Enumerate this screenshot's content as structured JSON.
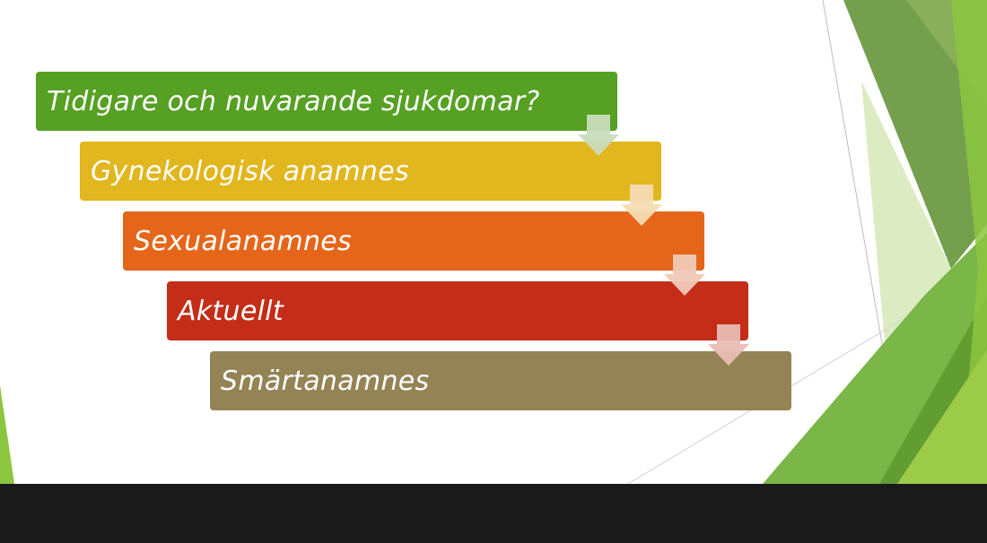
{
  "steps": [
    {
      "label": "Tidigare och nuvarande sjukdomar?",
      "color": "#56a024",
      "arrow_color": "#c9dcbd"
    },
    {
      "label": "Gynekologisk anamnes",
      "color": "#e2b61e",
      "arrow_color": "#f4dcb2"
    },
    {
      "label": "Sexualanamnes",
      "color": "#e5661a",
      "arrow_color": "#f1c9b6"
    },
    {
      "label": "Aktuellt",
      "color": "#c42d17",
      "arrow_color": "#e8bcb3"
    },
    {
      "label": "Smärtanamnes",
      "color": "#948455",
      "arrow_color": null
    }
  ],
  "theme": {
    "accent_green": "#7ab648",
    "light_green": "#d6e8b6",
    "footer": "#1a1a1a"
  }
}
